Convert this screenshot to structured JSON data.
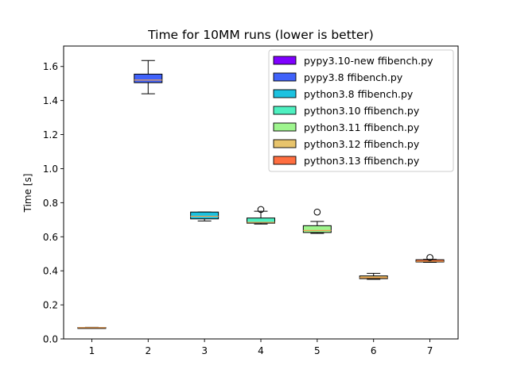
{
  "chart_data": {
    "type": "box",
    "title": "Time for 10MM runs (lower is better)",
    "xlabel": "",
    "ylabel": "Time [s]",
    "categories": [
      "1",
      "2",
      "3",
      "4",
      "5",
      "6",
      "7"
    ],
    "ylim": [
      0,
      1.72
    ],
    "yticks": [
      "0.0",
      "0.2",
      "0.4",
      "0.6",
      "0.8",
      "1.0",
      "1.2",
      "1.4",
      "1.6"
    ],
    "ytick_values": [
      0,
      0.2,
      0.4,
      0.6,
      0.8,
      1.0,
      1.2,
      1.4,
      1.6
    ],
    "grid": false,
    "legend_position": "top-right",
    "median_color": "#f0a050",
    "series": [
      {
        "name": "pypy3.10-new ffibench.py",
        "color": "#7f00ff",
        "position": 1,
        "whisker_low": 0.064,
        "q1": 0.065,
        "median": 0.066,
        "q3": 0.067,
        "whisker_high": 0.068,
        "outliers": []
      },
      {
        "name": "pypy3.8 ffibench.py",
        "color": "#4062fa",
        "position": 2,
        "whisker_low": 1.44,
        "q1": 1.505,
        "median": 1.52,
        "q3": 1.555,
        "whisker_high": 1.635,
        "outliers": []
      },
      {
        "name": "python3.8 ffibench.py",
        "color": "#1cc2e0",
        "position": 3,
        "whisker_low": 0.693,
        "q1": 0.705,
        "median": 0.72,
        "q3": 0.745,
        "whisker_high": 0.745,
        "outliers": []
      },
      {
        "name": "python3.10 ffibench.py",
        "color": "#4ef0c0",
        "position": 4,
        "whisker_low": 0.675,
        "q1": 0.68,
        "median": 0.685,
        "q3": 0.71,
        "whisker_high": 0.75,
        "outliers": [
          0.76
        ]
      },
      {
        "name": "python3.11 ffibench.py",
        "color": "#9ef58e",
        "position": 5,
        "whisker_low": 0.62,
        "q1": 0.625,
        "median": 0.637,
        "q3": 0.665,
        "whisker_high": 0.69,
        "outliers": [
          0.745
        ]
      },
      {
        "name": "python3.12 ffibench.py",
        "color": "#e8c46c",
        "position": 6,
        "whisker_low": 0.35,
        "q1": 0.354,
        "median": 0.36,
        "q3": 0.37,
        "whisker_high": 0.385,
        "outliers": []
      },
      {
        "name": "python3.13 ffibench.py",
        "color": "#ff6e40",
        "position": 7,
        "whisker_low": 0.45,
        "q1": 0.452,
        "median": 0.456,
        "q3": 0.465,
        "whisker_high": 0.467,
        "outliers": [
          0.478
        ]
      }
    ]
  }
}
